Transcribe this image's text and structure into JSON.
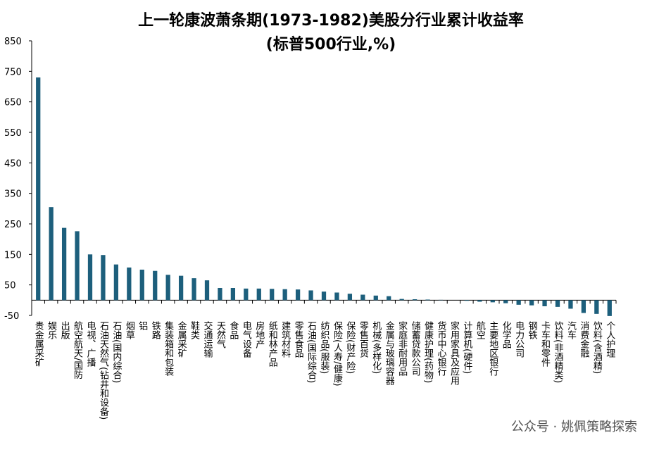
{
  "chart_data": {
    "type": "bar",
    "title": "上一轮康波萧条期(1973-1982)美股分行业累计收益率",
    "subtitle": "(标普500行业,%)",
    "categories": [
      "贵金属采矿",
      "娱乐",
      "出版",
      "航空航天/国防",
      "电视、广播",
      "石油天然气(钻井和设备)",
      "石油(国内综合)",
      "烟草",
      "铝",
      "铁路",
      "集装箱和包装",
      "金属采矿",
      "鞋类",
      "交通运输",
      "天然气",
      "食品",
      "电气设备",
      "房地产",
      "纸和林产品",
      "建筑材料",
      "零售食品",
      "石油(国际综合)",
      "纺织品(服装)",
      "保险(人寿/健康)",
      "保险(财产险)",
      "零售百货",
      "机械(多样化)",
      "金属与玻璃容器",
      "家庭非耐用品",
      "储蓄贷款公司",
      "健康护理(药物)",
      "货币中心银行",
      "家用家具及应用",
      "计算机(硬件)",
      "航空",
      "主要地区银行",
      "化学品",
      "电力公司",
      "钢铁",
      "卡车和零件",
      "饮料(非酒精类)",
      "汽车",
      "消费金融",
      "饮料(含酒精)",
      "个人护理"
    ],
    "values": [
      730,
      305,
      237,
      226,
      150,
      148,
      117,
      107,
      100,
      96,
      83,
      80,
      72,
      65,
      40,
      40,
      38,
      38,
      37,
      36,
      35,
      32,
      28,
      25,
      21,
      18,
      15,
      13,
      4,
      3,
      2,
      1,
      0,
      -2,
      -5,
      -7,
      -10,
      -15,
      -17,
      -20,
      -22,
      -28,
      -42,
      -45,
      -52
    ],
    "color": "#1d5f7c",
    "ylim": [
      -50,
      850
    ],
    "yticks": [
      -50,
      50,
      150,
      250,
      350,
      450,
      550,
      650,
      750,
      850
    ],
    "grid": false
  },
  "watermark": "公众号 · 姚佩策略探索"
}
